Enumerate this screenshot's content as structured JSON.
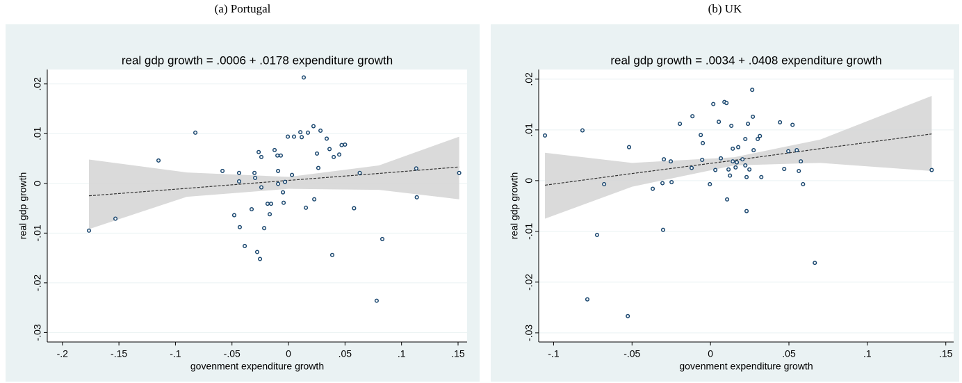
{
  "chart_data": [
    {
      "type": "scatter",
      "caption": "(a) Portugal",
      "title": "real gdp growth = .0006 + .0178 expenditure growth",
      "xlabel": "govenment expenditure growth",
      "ylabel": "real gdp growth",
      "color": "#1a476f",
      "grid": true,
      "x": [
        -0.1765,
        -0.1531,
        -0.115,
        -0.0824,
        -0.0584,
        -0.048,
        -0.0437,
        -0.0437,
        -0.0431,
        -0.0387,
        -0.0326,
        -0.0301,
        -0.0295,
        -0.0277,
        -0.0264,
        -0.0252,
        -0.024,
        -0.024,
        -0.0215,
        -0.0185,
        -0.0166,
        -0.0154,
        -0.0123,
        -0.0098,
        -0.0092,
        -0.0092,
        -0.0068,
        -0.0049,
        -0.0043,
        -0.0031,
        -0.0006,
        0.0031,
        0.0049,
        0.0105,
        0.0117,
        0.0135,
        0.0154,
        0.0172,
        0.0221,
        0.0228,
        0.0252,
        0.0264,
        0.0283,
        0.0338,
        0.0363,
        0.0387,
        0.04,
        0.0449,
        0.047,
        0.05,
        0.058,
        0.063,
        0.078,
        0.083,
        0.113,
        0.1135,
        0.151
      ],
      "y": [
        -0.0095,
        -0.0071,
        0.0046,
        0.0102,
        0.0025,
        -0.0064,
        0.0021,
        0.0004,
        -0.0088,
        -0.0126,
        -0.0052,
        0.0021,
        0.0011,
        -0.0138,
        0.0063,
        -0.0152,
        0.0053,
        -0.0008,
        -0.009,
        -0.0041,
        -0.0062,
        -0.0041,
        0.0067,
        0.0056,
        0.0025,
        -0.0001,
        0.0056,
        -0.0018,
        -0.0039,
        0.0003,
        0.0094,
        0.0017,
        0.0094,
        0.0103,
        0.0093,
        0.0213,
        -0.0049,
        0.0102,
        0.0115,
        -0.0032,
        0.006,
        0.0031,
        0.0106,
        0.009,
        0.0069,
        -0.0144,
        0.0053,
        0.0058,
        0.0077,
        0.0078,
        -0.005,
        0.0021,
        -0.0236,
        -0.0112,
        0.003,
        -0.0028,
        0.0021
      ],
      "fit": {
        "color": "#d3d3d3",
        "line_color": "#333333",
        "x": [
          -0.1765,
          -0.09,
          0,
          0.08,
          0.151
        ],
        "y": [
          -0.0025,
          -0.001,
          0.0006,
          0.002,
          0.0033
        ],
        "lower": [
          -0.0092,
          -0.0027,
          -0.0011,
          -0.0013,
          -0.0032
        ],
        "upper": [
          0.0048,
          0.0022,
          0.0013,
          0.0036,
          0.0094
        ]
      },
      "xlim": [
        -0.2134,
        0.158
      ],
      "ylim": [
        -0.0319,
        0.0229
      ],
      "xticks": [
        {
          "value": -0.2,
          "label": "-.2"
        },
        {
          "value": -0.15,
          "label": "-.15"
        },
        {
          "value": -0.1,
          "label": "-.1"
        },
        {
          "value": -0.05,
          "label": "-.05"
        },
        0,
        {
          "value": 0.05,
          "label": ".05"
        },
        {
          "value": 0.1,
          "label": ".1"
        },
        {
          "value": 0.15,
          "label": ".15"
        }
      ],
      "yticks": [
        {
          "value": -0.03,
          "label": "-.03"
        },
        {
          "value": -0.02,
          "label": "-.02"
        },
        {
          "value": -0.01,
          "label": "-.01"
        },
        0,
        {
          "value": 0.01,
          "label": ".01"
        },
        {
          "value": 0.02,
          "label": ".02"
        }
      ]
    },
    {
      "type": "scatter",
      "caption": "(b) UK",
      "title": "real gdp growth = .0034 + .0408 expenditure growth",
      "xlabel": "govenment expenditure growth",
      "ylabel": "real gdp growth",
      "color": "#1a476f",
      "grid": true,
      "x": [
        -0.1055,
        -0.0816,
        -0.0785,
        -0.0723,
        -0.0678,
        -0.0527,
        -0.0519,
        -0.0368,
        -0.0306,
        -0.0302,
        -0.0297,
        -0.0253,
        -0.0248,
        -0.0195,
        -0.012,
        -0.0115,
        -0.0062,
        -0.0053,
        -0.0049,
        -0.0004,
        0.0018,
        0.0031,
        0.0053,
        0.0066,
        0.0089,
        0.0102,
        0.0106,
        0.0115,
        0.0124,
        0.0133,
        0.0142,
        0.0142,
        0.016,
        0.0168,
        0.0177,
        0.0204,
        0.0222,
        0.0222,
        0.023,
        0.023,
        0.0239,
        0.0248,
        0.0266,
        0.027,
        0.0275,
        0.0301,
        0.0315,
        0.0324,
        0.0443,
        0.047,
        0.0496,
        0.0523,
        0.055,
        0.0563,
        0.0576,
        0.059,
        0.0665,
        0.141
      ],
      "y": [
        0.0089,
        0.0099,
        -0.0234,
        -0.0107,
        -0.0007,
        -0.0267,
        0.0066,
        -0.0016,
        -0.0005,
        -0.0097,
        0.0042,
        0.0038,
        -0.0003,
        0.0112,
        0.0025,
        0.0127,
        0.009,
        0.0041,
        0.0074,
        -0.0007,
        0.0151,
        0.0021,
        0.0116,
        0.0044,
        0.0155,
        0.0153,
        -0.0037,
        0.0022,
        0.001,
        0.0108,
        0.0038,
        0.0063,
        0.0026,
        0.0036,
        0.0066,
        0.0042,
        0.0082,
        0.003,
        0.0007,
        -0.006,
        0.0112,
        0.0022,
        0.0179,
        0.0126,
        0.006,
        0.0082,
        0.0088,
        0.0007,
        0.0115,
        0.0023,
        0.0058,
        0.011,
        0.006,
        0.0019,
        0.0038,
        -0.0007,
        -0.0162,
        0.0021
      ],
      "fit": {
        "color": "#d3d3d3",
        "line_color": "#333333",
        "x": [
          -0.1055,
          -0.05,
          0.015,
          0.07,
          0.141
        ],
        "y": [
          -0.0009,
          0.0014,
          0.004,
          0.0063,
          0.0092
        ],
        "lower": [
          -0.0075,
          -0.0012,
          0.003,
          0.0035,
          0.0019
        ],
        "upper": [
          0.0055,
          0.0035,
          0.0046,
          0.0081,
          0.0167
        ]
      },
      "xlim": [
        -0.1095,
        0.155
      ],
      "ylim": [
        -0.0318,
        0.0219
      ],
      "xticks": [
        {
          "value": -0.1,
          "label": "-.1"
        },
        {
          "value": -0.05,
          "label": "-.05"
        },
        0,
        {
          "value": 0.05,
          "label": ".05"
        },
        {
          "value": 0.1,
          "label": ".1"
        },
        {
          "value": 0.15,
          "label": ".15"
        }
      ],
      "yticks": [
        {
          "value": -0.03,
          "label": "-.03"
        },
        {
          "value": -0.02,
          "label": "-.02"
        },
        {
          "value": -0.01,
          "label": "-.01"
        },
        0,
        {
          "value": 0.01,
          "label": ".01"
        },
        {
          "value": 0.02,
          "label": ".02"
        }
      ]
    }
  ]
}
